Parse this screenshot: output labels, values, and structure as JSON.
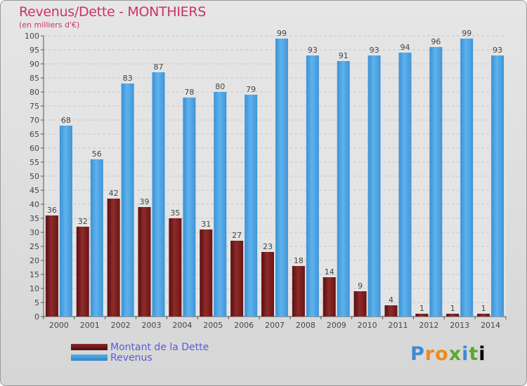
{
  "header": {
    "title": "Revenus/Dette - MONTHIERS",
    "subtitle": "(en milliers d'€)"
  },
  "chart_data": {
    "type": "bar",
    "categories": [
      "2000",
      "2001",
      "2002",
      "2003",
      "2004",
      "2005",
      "2006",
      "2007",
      "2008",
      "2009",
      "2010",
      "2011",
      "2012",
      "2013",
      "2014"
    ],
    "series": [
      {
        "name": "Montant de la Dette",
        "color": "#7a1e1e",
        "values": [
          36,
          32,
          42,
          39,
          35,
          31,
          27,
          23,
          18,
          14,
          9,
          4,
          1,
          1,
          1
        ]
      },
      {
        "name": "Revenus",
        "color": "#4aa3e0",
        "values": [
          68,
          56,
          83,
          87,
          78,
          80,
          79,
          99,
          93,
          91,
          93,
          94,
          96,
          99,
          93
        ]
      }
    ],
    "ylim": [
      0,
      100
    ],
    "yticks": [
      0,
      5,
      10,
      15,
      20,
      25,
      30,
      35,
      40,
      45,
      50,
      55,
      60,
      65,
      70,
      75,
      80,
      85,
      90,
      95,
      100
    ],
    "grid": true,
    "legend_position": "bottom-left"
  },
  "legend": {
    "items": [
      {
        "label": "Montant de la Dette"
      },
      {
        "label": "Revenus"
      }
    ]
  },
  "brand": {
    "letters": [
      "P",
      "r",
      "o",
      "x",
      "i",
      "t",
      "i"
    ]
  }
}
